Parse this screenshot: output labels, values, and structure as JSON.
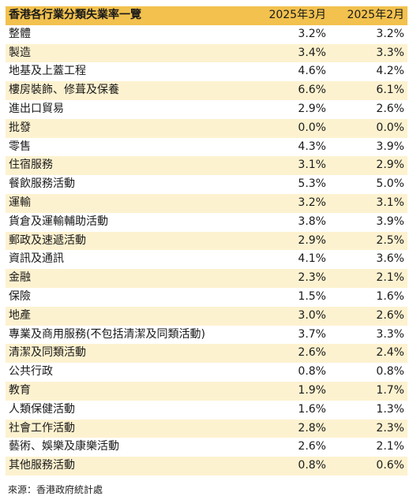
{
  "table": {
    "title": "香港各行業分類失業率一覽",
    "col_mar": "2025年3月",
    "col_feb": "2025年2月",
    "rows": [
      {
        "name": "整體",
        "mar": "3.2%",
        "feb": "3.2%"
      },
      {
        "name": "製造",
        "mar": "3.4%",
        "feb": "3.3%"
      },
      {
        "name": "地基及上蓋工程",
        "mar": "4.6%",
        "feb": "4.2%"
      },
      {
        "name": "樓房裝飾、修葺及保養",
        "mar": "6.6%",
        "feb": "6.1%"
      },
      {
        "name": "進出口貿易",
        "mar": "2.9%",
        "feb": "2.6%"
      },
      {
        "name": "批發",
        "mar": "0.0%",
        "feb": "0.0%"
      },
      {
        "name": "零售",
        "mar": "4.3%",
        "feb": "3.9%"
      },
      {
        "name": "住宿服務",
        "mar": "3.1%",
        "feb": "2.9%"
      },
      {
        "name": "餐飲服務活動",
        "mar": "5.3%",
        "feb": "5.0%"
      },
      {
        "name": "運輸",
        "mar": "3.2%",
        "feb": "3.1%"
      },
      {
        "name": "貨倉及運輸輔助活動",
        "mar": "3.8%",
        "feb": "3.9%"
      },
      {
        "name": "郵政及速遞活動",
        "mar": "2.9%",
        "feb": "2.5%"
      },
      {
        "name": "資訊及通訊",
        "mar": "4.1%",
        "feb": "3.6%"
      },
      {
        "name": "金融",
        "mar": "2.3%",
        "feb": "2.1%"
      },
      {
        "name": "保險",
        "mar": "1.5%",
        "feb": "1.6%"
      },
      {
        "name": "地產",
        "mar": "3.0%",
        "feb": "2.6%"
      },
      {
        "name": "專業及商用服務(不包括清潔及同類活動)",
        "mar": "3.7%",
        "feb": "3.3%"
      },
      {
        "name": "清潔及同類活動",
        "mar": "2.6%",
        "feb": "2.4%"
      },
      {
        "name": "公共行政",
        "mar": "0.8%",
        "feb": "0.8%"
      },
      {
        "name": "教育",
        "mar": "1.9%",
        "feb": "1.7%"
      },
      {
        "name": "人類保健活動",
        "mar": "1.6%",
        "feb": "1.3%"
      },
      {
        "name": "社會工作活動",
        "mar": "2.8%",
        "feb": "2.3%"
      },
      {
        "name": "藝術、娛樂及康樂活動",
        "mar": "2.6%",
        "feb": "2.1%"
      },
      {
        "name": "其他服務活動",
        "mar": "0.8%",
        "feb": "0.6%"
      }
    ]
  },
  "source": "來源：香港政府統計處",
  "colors": {
    "header_bg": "#f2c14e",
    "stripe_bg": "#fdf2d0"
  }
}
